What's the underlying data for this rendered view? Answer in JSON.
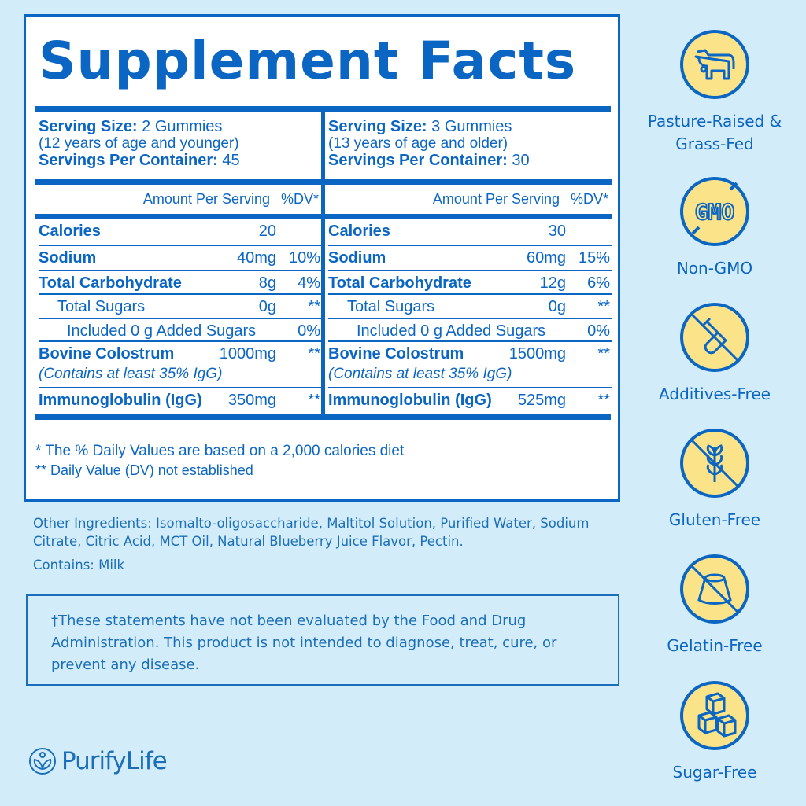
{
  "title": "Supplement Facts",
  "columns": [
    {
      "serving_size_label": "Serving Size:",
      "serving_size": "2 Gummies",
      "age_note": "(12 years of age and younger)",
      "servings_label": "Servings Per Container:",
      "servings": "45",
      "amount_header": "Amount Per Serving",
      "dv_header": "%DV*",
      "rows": [
        {
          "label": "Calories",
          "amount": "20",
          "dv": "",
          "bold": true,
          "indent": 0
        },
        {
          "label": "Sodium",
          "amount": "40mg",
          "dv": "10%",
          "bold": true,
          "indent": 0
        },
        {
          "label": "Total Carbohydrate",
          "amount": "8g",
          "dv": "4%",
          "bold": true,
          "indent": 0
        },
        {
          "label": "Total Sugars",
          "amount": "0g",
          "dv": "**",
          "bold": false,
          "indent": 1
        },
        {
          "label": "Included 0 g Added Sugars",
          "amount": "",
          "dv": "0%",
          "bold": false,
          "indent": 2
        },
        {
          "label": "Bovine Colostrum",
          "amount": "1000mg",
          "dv": "**",
          "bold": true,
          "indent": 0,
          "sub": "(Contains at least 35% IgG)"
        },
        {
          "label": "Immunoglobulin (IgG)",
          "amount": "350mg",
          "dv": "**",
          "bold": true,
          "indent": 0
        }
      ]
    },
    {
      "serving_size_label": "Serving Size:",
      "serving_size": "3 Gummies",
      "age_note": "(13 years of age and older)",
      "servings_label": "Servings Per Container:",
      "servings": "30",
      "amount_header": "Amount Per Serving",
      "dv_header": "%DV*",
      "rows": [
        {
          "label": "Calories",
          "amount": "30",
          "dv": "",
          "bold": true,
          "indent": 0
        },
        {
          "label": "Sodium",
          "amount": "60mg",
          "dv": "15%",
          "bold": true,
          "indent": 0
        },
        {
          "label": "Total Carbohydrate",
          "amount": "12g",
          "dv": "6%",
          "bold": true,
          "indent": 0
        },
        {
          "label": "Total Sugars",
          "amount": "0g",
          "dv": "**",
          "bold": false,
          "indent": 1
        },
        {
          "label": "Included 0 g Added Sugars",
          "amount": "",
          "dv": "0%",
          "bold": false,
          "indent": 2
        },
        {
          "label": "Bovine Colostrum",
          "amount": "1500mg",
          "dv": "**",
          "bold": true,
          "indent": 0,
          "sub": "(Contains at least 35% IgG)"
        },
        {
          "label": "Immunoglobulin (IgG)",
          "amount": "525mg",
          "dv": "**",
          "bold": true,
          "indent": 0
        }
      ]
    }
  ],
  "footnotes": [
    "* The % Daily Values are based on a 2,000 calories diet",
    "** Daily Value (DV) not established"
  ],
  "other_ingredients": "Other Ingredients: Isomalto-oligosaccharide, Maltitol Solution, Purified Water, Sodium Citrate, Citric Acid, MCT Oil, Natural Blueberry Juice Flavor, Pectin.",
  "contains": "Contains: Milk",
  "disclaimer": "†These statements have not been evaluated by the Food and Drug Administration. This product is not intended to diagnose, treat, cure, or prevent any disease.",
  "badges": [
    {
      "icon": "cow-icon",
      "label": "Pasture-Raised & Grass-Fed"
    },
    {
      "icon": "gmo-crossed-icon",
      "label": "Non-GMO",
      "icon_text": "GMO"
    },
    {
      "icon": "test-tube-crossed-icon",
      "label": "Additives-Free"
    },
    {
      "icon": "wheat-crossed-icon",
      "label": "Gluten-Free"
    },
    {
      "icon": "gelatin-crossed-icon",
      "label": "Gelatin-Free"
    },
    {
      "icon": "sugar-cubes-icon",
      "label": "Sugar-Free"
    }
  ],
  "brand": "PurifyLife",
  "colors": {
    "primary": "#0b66c3",
    "background": "#d3ecf9",
    "badge_fill": "#fbe38a"
  }
}
